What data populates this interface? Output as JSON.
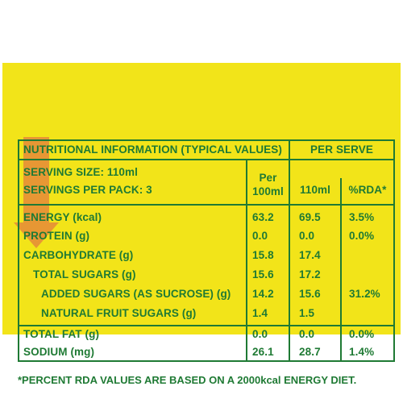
{
  "header": {
    "title": "NUTRITIONAL INFORMATION (TYPICAL VALUES)",
    "per_serve": "PER SERVE",
    "serving_size": "SERVING SIZE: 110ml",
    "servings_per_pack": "SERVINGS PER PACK: 3",
    "col_per100_line1": "Per",
    "col_per100_line2": "100ml",
    "col_serve": "110ml",
    "col_rda": "%RDA*"
  },
  "rows": [
    {
      "name": "ENERGY (kcal)",
      "per100": "63.2",
      "serve": "69.5",
      "rda": "3.5%"
    },
    {
      "name": "PROTEIN (g)",
      "per100": "0.0",
      "serve": "0.0",
      "rda": "0.0%"
    },
    {
      "name": "CARBOHYDRATE (g)",
      "per100": "15.8",
      "serve": "17.4",
      "rda": ""
    },
    {
      "name": "TOTAL SUGARS (g)",
      "per100": "15.6",
      "serve": "17.2",
      "rda": ""
    },
    {
      "name": "ADDED SUGARS (AS SUCROSE) (g)",
      "per100": "14.2",
      "serve": "15.6",
      "rda": "31.2%"
    },
    {
      "name": "NATURAL FRUIT SUGARS (g)",
      "per100": "1.4",
      "serve": "1.5",
      "rda": ""
    },
    {
      "name": "TOTAL FAT (g)",
      "per100": "0.0",
      "serve": "0.0",
      "rda": "0.0%"
    },
    {
      "name": "SODIUM (mg)",
      "per100": "26.1",
      "serve": "28.7",
      "rda": "1.4%"
    }
  ],
  "footnote": "*PERCENT RDA VALUES ARE BASED ON A 2000kcal ENERGY DIET.",
  "colors": {
    "background": "#f2e419",
    "text": "#1f7a34",
    "arrow": "#e58a3a"
  },
  "decorations": {
    "arrow_icon": "arrow-down-icon"
  }
}
